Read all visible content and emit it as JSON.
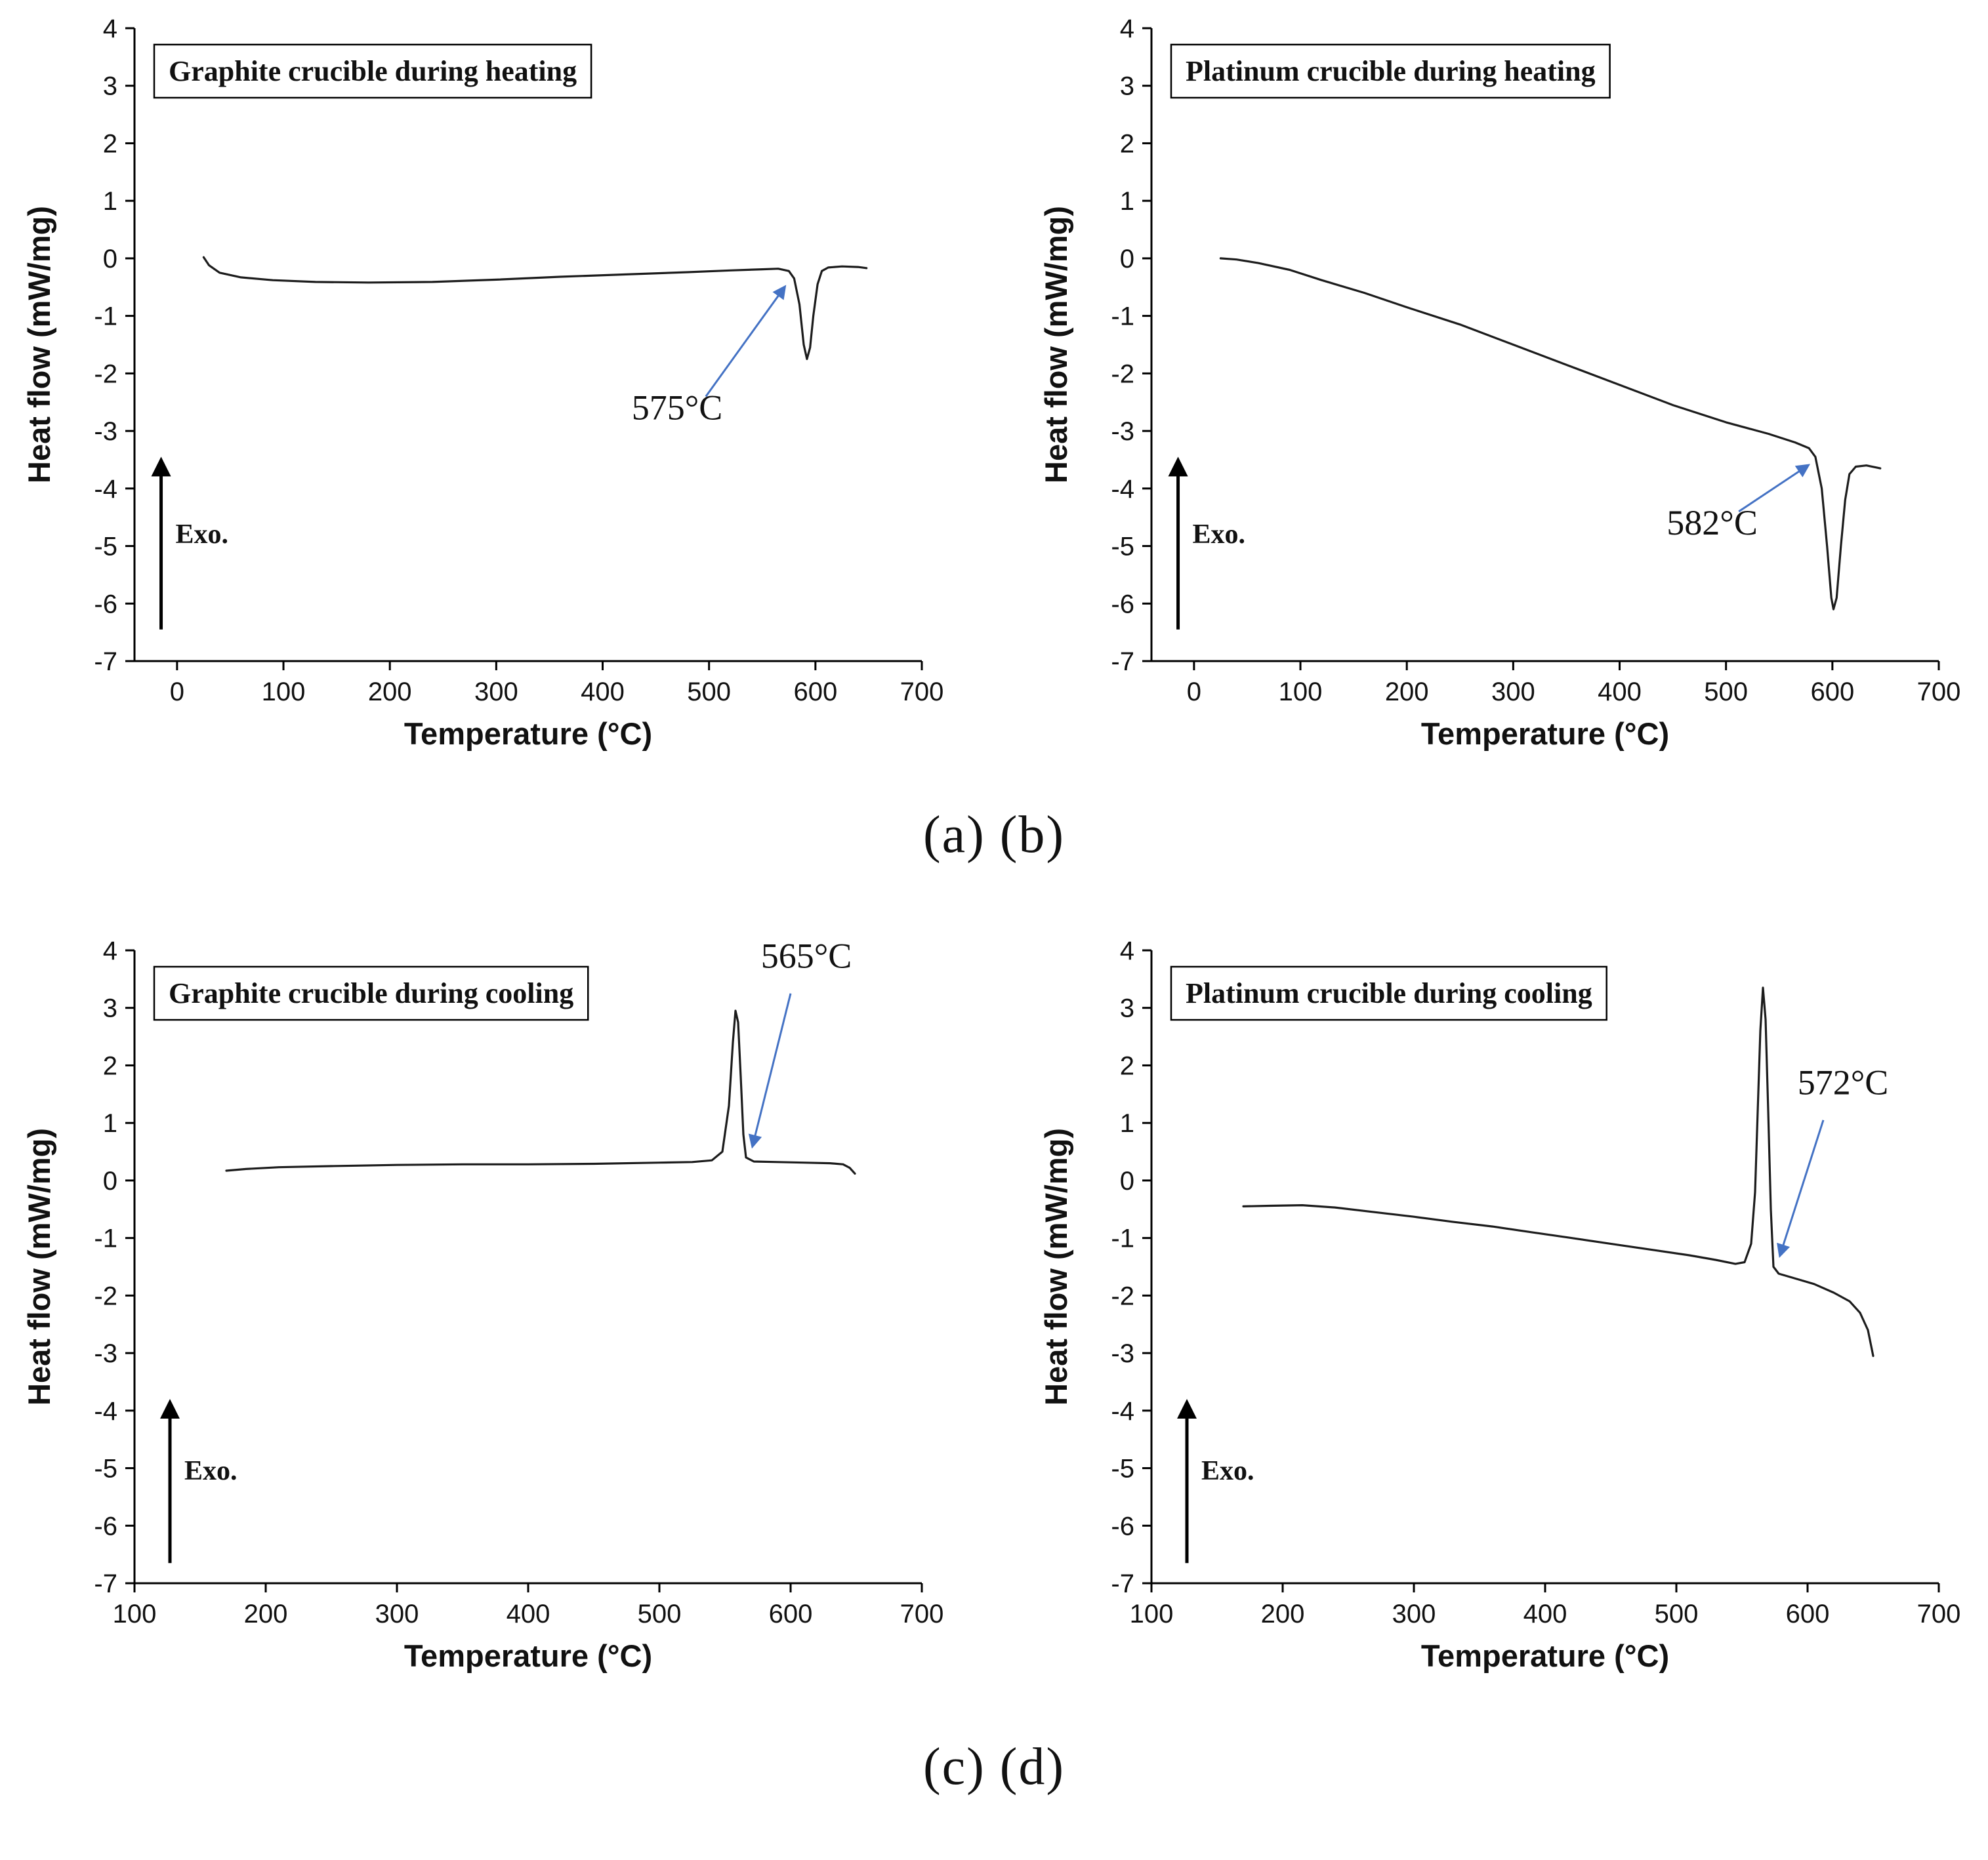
{
  "figure": {
    "captions": [
      "(a) (b)",
      "(c) (d)"
    ],
    "accent_color": "#4472c4",
    "curve_color": "#1c1c1c"
  },
  "chart_data": [
    {
      "id": "a",
      "type": "line",
      "title": "Graphite crucible during heating",
      "xlabel": "Temperature (°C)",
      "ylabel": "Heat flow (mW/mg)",
      "xlim": [
        -40,
        700
      ],
      "ylim": [
        -7,
        4
      ],
      "x_ticks": [
        0,
        100,
        200,
        300,
        400,
        500,
        600,
        700
      ],
      "y_ticks": [
        -7,
        -6,
        -5,
        -4,
        -3,
        -2,
        -1,
        0,
        1,
        2,
        3,
        4
      ],
      "exo": {
        "label": "Exo.",
        "x": -15,
        "y_from": -6.45,
        "y_to": -3.55,
        "label_y": -4.95
      },
      "annotation": {
        "label": "575°C",
        "label_x": 470,
        "label_y": -2.8,
        "arrow": [
          497,
          -2.4,
          571,
          -0.5
        ]
      },
      "series": [
        {
          "name": "heat_flow",
          "points": [
            [
              25,
              0.02
            ],
            [
              30,
              -0.12
            ],
            [
              40,
              -0.25
            ],
            [
              60,
              -0.33
            ],
            [
              90,
              -0.38
            ],
            [
              130,
              -0.41
            ],
            [
              180,
              -0.42
            ],
            [
              240,
              -0.41
            ],
            [
              300,
              -0.37
            ],
            [
              360,
              -0.32
            ],
            [
              420,
              -0.28
            ],
            [
              480,
              -0.24
            ],
            [
              520,
              -0.21
            ],
            [
              550,
              -0.19
            ],
            [
              565,
              -0.18
            ],
            [
              575,
              -0.22
            ],
            [
              580,
              -0.35
            ],
            [
              585,
              -0.8
            ],
            [
              589,
              -1.5
            ],
            [
              592,
              -1.75
            ],
            [
              595,
              -1.55
            ],
            [
              598,
              -1.0
            ],
            [
              602,
              -0.45
            ],
            [
              606,
              -0.22
            ],
            [
              612,
              -0.16
            ],
            [
              625,
              -0.14
            ],
            [
              640,
              -0.15
            ],
            [
              648,
              -0.17
            ]
          ]
        }
      ]
    },
    {
      "id": "b",
      "type": "line",
      "title": "Platinum crucible during heating",
      "xlabel": "Temperature (°C)",
      "ylabel": "Heat flow (mW/mg)",
      "xlim": [
        -40,
        700
      ],
      "ylim": [
        -7,
        4
      ],
      "x_ticks": [
        0,
        100,
        200,
        300,
        400,
        500,
        600,
        700
      ],
      "y_ticks": [
        -7,
        -6,
        -5,
        -4,
        -3,
        -2,
        -1,
        0,
        1,
        2,
        3,
        4
      ],
      "exo": {
        "label": "Exo.",
        "x": -15,
        "y_from": -6.45,
        "y_to": -3.55,
        "label_y": -4.95
      },
      "annotation": {
        "label": "582°C",
        "label_x": 487,
        "label_y": -4.8,
        "arrow": [
          512,
          -4.4,
          577,
          -3.6
        ]
      },
      "series": [
        {
          "name": "heat_flow",
          "points": [
            [
              25,
              0.0
            ],
            [
              40,
              -0.02
            ],
            [
              60,
              -0.08
            ],
            [
              90,
              -0.2
            ],
            [
              120,
              -0.38
            ],
            [
              160,
              -0.6
            ],
            [
              200,
              -0.85
            ],
            [
              250,
              -1.15
            ],
            [
              300,
              -1.5
            ],
            [
              350,
              -1.85
            ],
            [
              400,
              -2.2
            ],
            [
              450,
              -2.55
            ],
            [
              500,
              -2.85
            ],
            [
              540,
              -3.05
            ],
            [
              565,
              -3.2
            ],
            [
              578,
              -3.3
            ],
            [
              584,
              -3.45
            ],
            [
              590,
              -4.0
            ],
            [
              595,
              -5.0
            ],
            [
              599,
              -5.9
            ],
            [
              601,
              -6.1
            ],
            [
              604,
              -5.9
            ],
            [
              608,
              -5.0
            ],
            [
              612,
              -4.2
            ],
            [
              616,
              -3.75
            ],
            [
              622,
              -3.62
            ],
            [
              632,
              -3.6
            ],
            [
              645,
              -3.65
            ]
          ]
        }
      ]
    },
    {
      "id": "c",
      "type": "line",
      "title": "Graphite crucible during cooling",
      "xlabel": "Temperature (°C)",
      "ylabel": "Heat flow (mW/mg)",
      "xlim": [
        100,
        700
      ],
      "ylim": [
        -7,
        4
      ],
      "x_ticks": [
        100,
        200,
        300,
        400,
        500,
        600,
        700
      ],
      "y_ticks": [
        -7,
        -6,
        -5,
        -4,
        -3,
        -2,
        -1,
        0,
        1,
        2,
        3,
        4
      ],
      "exo": {
        "label": "Exo.",
        "x": 127,
        "y_from": -6.65,
        "y_to": -3.9,
        "label_y": -5.2
      },
      "annotation": {
        "label": "565°C",
        "label_x": 612,
        "label_y": 3.7,
        "arrow": [
          600,
          3.25,
          571,
          0.6
        ]
      },
      "series": [
        {
          "name": "heat_flow",
          "points": [
            [
              170,
              0.17
            ],
            [
              185,
              0.2
            ],
            [
              210,
              0.23
            ],
            [
              250,
              0.25
            ],
            [
              300,
              0.27
            ],
            [
              350,
              0.28
            ],
            [
              400,
              0.28
            ],
            [
              450,
              0.29
            ],
            [
              500,
              0.31
            ],
            [
              525,
              0.32
            ],
            [
              540,
              0.35
            ],
            [
              548,
              0.5
            ],
            [
              553,
              1.3
            ],
            [
              556,
              2.4
            ],
            [
              558,
              2.95
            ],
            [
              560,
              2.75
            ],
            [
              562,
              1.8
            ],
            [
              564,
              0.8
            ],
            [
              566,
              0.4
            ],
            [
              572,
              0.33
            ],
            [
              590,
              0.32
            ],
            [
              610,
              0.31
            ],
            [
              630,
              0.3
            ],
            [
              640,
              0.28
            ],
            [
              645,
              0.22
            ],
            [
              649,
              0.12
            ]
          ]
        }
      ]
    },
    {
      "id": "d",
      "type": "line",
      "title": "Platinum crucible during cooling",
      "xlabel": "Temperature (°C)",
      "ylabel": "Heat flow (mW/mg)",
      "xlim": [
        100,
        700
      ],
      "ylim": [
        -7,
        4
      ],
      "x_ticks": [
        100,
        200,
        300,
        400,
        500,
        600,
        700
      ],
      "y_ticks": [
        -7,
        -6,
        -5,
        -4,
        -3,
        -2,
        -1,
        0,
        1,
        2,
        3,
        4
      ],
      "exo": {
        "label": "Exo.",
        "x": 127,
        "y_from": -6.65,
        "y_to": -3.9,
        "label_y": -5.2
      },
      "annotation": {
        "label": "572°C",
        "label_x": 627,
        "label_y": 1.5,
        "arrow": [
          612,
          1.05,
          579,
          -1.3
        ]
      },
      "series": [
        {
          "name": "heat_flow",
          "points": [
            [
              170,
              -0.45
            ],
            [
              190,
              -0.44
            ],
            [
              215,
              -0.43
            ],
            [
              240,
              -0.47
            ],
            [
              270,
              -0.55
            ],
            [
              300,
              -0.63
            ],
            [
              330,
              -0.72
            ],
            [
              360,
              -0.8
            ],
            [
              390,
              -0.9
            ],
            [
              420,
              -1.0
            ],
            [
              450,
              -1.1
            ],
            [
              480,
              -1.2
            ],
            [
              510,
              -1.3
            ],
            [
              530,
              -1.38
            ],
            [
              545,
              -1.45
            ],
            [
              552,
              -1.42
            ],
            [
              557,
              -1.1
            ],
            [
              560,
              -0.2
            ],
            [
              562,
              1.2
            ],
            [
              564,
              2.6
            ],
            [
              566,
              3.35
            ],
            [
              568,
              2.8
            ],
            [
              570,
              1.2
            ],
            [
              572,
              -0.5
            ],
            [
              574,
              -1.5
            ],
            [
              578,
              -1.62
            ],
            [
              590,
              -1.7
            ],
            [
              605,
              -1.8
            ],
            [
              620,
              -1.95
            ],
            [
              632,
              -2.1
            ],
            [
              640,
              -2.3
            ],
            [
              646,
              -2.6
            ],
            [
              650,
              -3.05
            ]
          ]
        }
      ]
    }
  ]
}
